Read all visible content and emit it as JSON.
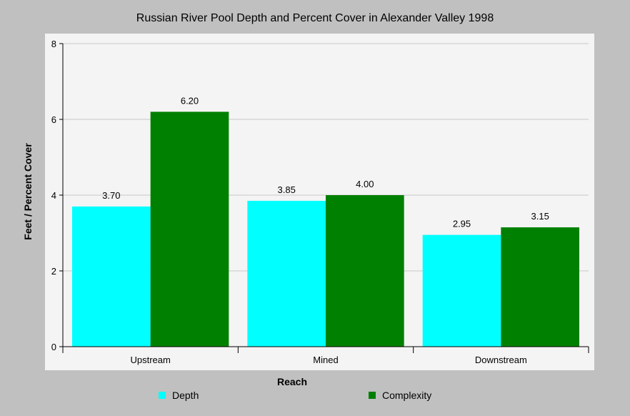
{
  "chart_data": {
    "type": "bar",
    "title": "Russian River Pool Depth and Percent Cover in Alexander Valley 1998",
    "xlabel": "Reach",
    "ylabel": "Feet / Percent Cover",
    "categories": [
      "Upstream",
      "Mined",
      "Downstream"
    ],
    "series": [
      {
        "name": "Depth",
        "color": "#00ffff",
        "values": [
          3.7,
          3.85,
          2.95
        ],
        "labels": [
          "3.70",
          "3.85",
          "2.95"
        ]
      },
      {
        "name": "Complexity",
        "color": "#008000",
        "values": [
          6.2,
          4.0,
          3.15
        ],
        "labels": [
          "6.20",
          "4.00",
          "3.15"
        ]
      }
    ],
    "ylim": [
      0,
      8
    ],
    "yticks": [
      0,
      2,
      4,
      6,
      8
    ],
    "grid": true,
    "legend_position": "bottom"
  }
}
